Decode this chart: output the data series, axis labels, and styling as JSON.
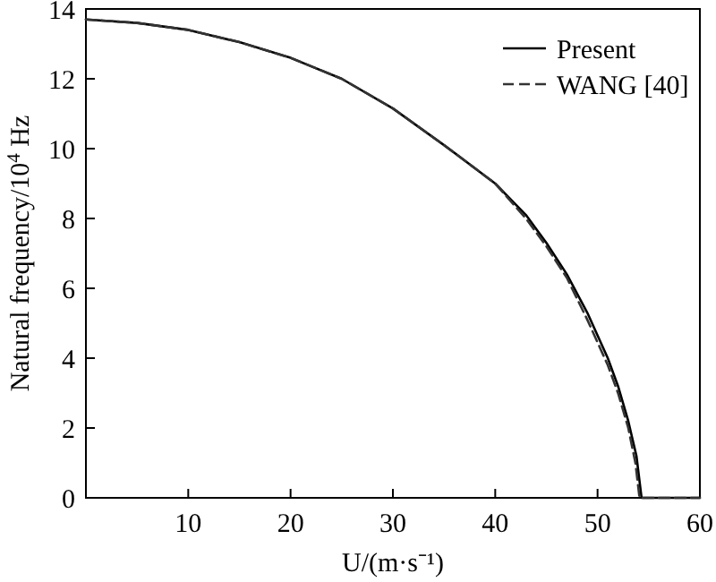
{
  "chart_data": {
    "type": "line",
    "xlabel": "U/(m·s⁻¹)",
    "ylabel": "Natural frequency/10$^{4}$ Hz",
    "xlim": [
      0,
      60
    ],
    "ylim": [
      0,
      14
    ],
    "xticks": [
      10,
      20,
      30,
      40,
      50,
      60
    ],
    "yticks": [
      0,
      2,
      4,
      6,
      8,
      10,
      12,
      14
    ],
    "grid": false,
    "legend": "top right",
    "marker": "none",
    "series": [
      {
        "name": "Present",
        "color": "#000000",
        "line_style": "solid",
        "x": [
          0,
          5,
          10,
          15,
          20,
          25,
          30,
          35,
          40,
          43,
          45,
          47,
          49,
          51,
          52,
          53,
          53.8,
          54.3,
          60
        ],
        "values": [
          13.7,
          13.6,
          13.4,
          13.05,
          12.6,
          12.0,
          11.15,
          10.1,
          9.0,
          8.1,
          7.3,
          6.4,
          5.3,
          4.0,
          3.2,
          2.2,
          1.2,
          0,
          0
        ]
      },
      {
        "name": "WANG [40]",
        "color": "#333333",
        "line_style": "dashed",
        "x": [
          0,
          5,
          10,
          15,
          20,
          25,
          30,
          35,
          40,
          43,
          45,
          47,
          49,
          51,
          52,
          53,
          53.7,
          54.1,
          60
        ],
        "values": [
          13.7,
          13.6,
          13.4,
          13.05,
          12.6,
          12.0,
          11.15,
          10.1,
          9.0,
          8.0,
          7.2,
          6.3,
          5.1,
          3.8,
          3.0,
          2.0,
          1.0,
          0,
          0
        ]
      }
    ]
  }
}
